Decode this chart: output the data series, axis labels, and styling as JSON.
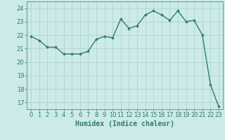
{
  "x": [
    0,
    1,
    2,
    3,
    4,
    5,
    6,
    7,
    8,
    9,
    10,
    11,
    12,
    13,
    14,
    15,
    16,
    17,
    18,
    19,
    20,
    21,
    22,
    23
  ],
  "y": [
    21.9,
    21.6,
    21.1,
    21.1,
    20.6,
    20.6,
    20.6,
    20.8,
    21.7,
    21.9,
    21.8,
    23.2,
    22.5,
    22.7,
    23.5,
    23.8,
    23.5,
    23.1,
    23.8,
    23.0,
    23.1,
    22.0,
    18.3,
    16.7
  ],
  "line_color": "#2e7d6e",
  "marker": "D",
  "marker_size": 2,
  "linewidth": 1.0,
  "bg_color": "#cceae7",
  "grid_color": "#b0d4d0",
  "xlabel": "Humidex (Indice chaleur)",
  "xlabel_fontsize": 7,
  "tick_fontsize": 6,
  "xlim": [
    -0.5,
    23.5
  ],
  "ylim": [
    16.5,
    24.5
  ],
  "yticks": [
    17,
    18,
    19,
    20,
    21,
    22,
    23,
    24
  ],
  "xticks": [
    0,
    1,
    2,
    3,
    4,
    5,
    6,
    7,
    8,
    9,
    10,
    11,
    12,
    13,
    14,
    15,
    16,
    17,
    18,
    19,
    20,
    21,
    22,
    23
  ],
  "axis_color": "#2e7d6e",
  "spine_color": "#5a9e90"
}
